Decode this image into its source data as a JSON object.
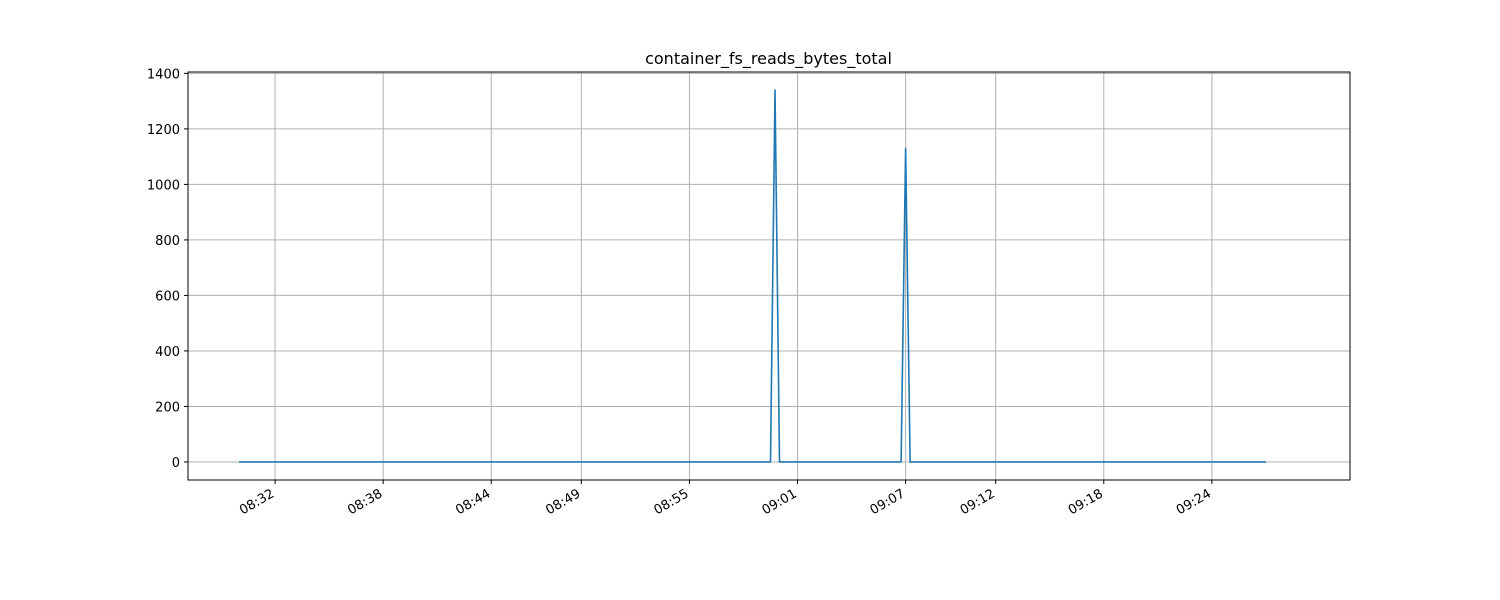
{
  "chart_data": {
    "type": "line",
    "title": "container_fs_reads_bytes_total",
    "xlabel": "",
    "ylabel": "",
    "xlim": [
      "08:27:10",
      "09:31:40"
    ],
    "ylim": [
      -65,
      1405
    ],
    "grid": true,
    "legend": "none",
    "x_ticks": [
      "08:32",
      "08:38",
      "08:44",
      "08:49",
      "08:55",
      "09:01",
      "09:07",
      "09:12",
      "09:18",
      "09:24"
    ],
    "y_ticks": [
      0,
      200,
      400,
      600,
      800,
      1000,
      1200,
      1400
    ],
    "series": [
      {
        "color": "#1f77b4",
        "points": [
          {
            "x": "08:30:00",
            "y": 0
          },
          {
            "x": "08:59:30",
            "y": 0
          },
          {
            "x": "08:59:45",
            "y": 1340
          },
          {
            "x": "09:00:00",
            "y": 0
          },
          {
            "x": "09:06:45",
            "y": 0
          },
          {
            "x": "09:07:00",
            "y": 1130
          },
          {
            "x": "09:07:15",
            "y": 0
          },
          {
            "x": "09:27:00",
            "y": 0
          }
        ]
      }
    ]
  }
}
